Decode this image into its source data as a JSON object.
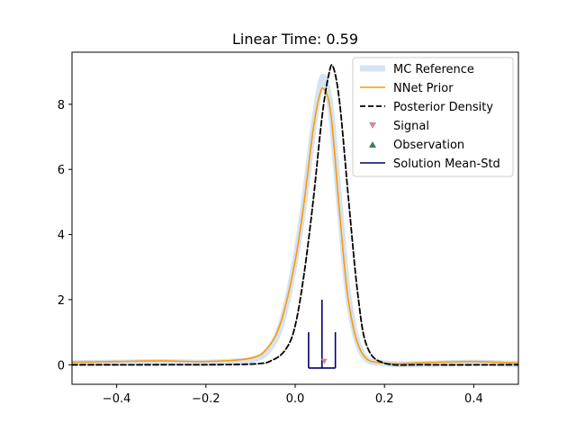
{
  "chart_data": {
    "type": "line",
    "title": "Linear Time: 0.59",
    "xlabel": "",
    "ylabel": "",
    "xlim": [
      -0.5,
      0.5
    ],
    "ylim": [
      -0.6,
      9.6
    ],
    "x_ticks": [
      -0.4,
      -0.2,
      0.0,
      0.2,
      0.4
    ],
    "x_tick_labels": [
      "−0.4",
      "−0.2",
      "0.0",
      "0.2",
      "0.4"
    ],
    "y_ticks": [
      0,
      2,
      4,
      6,
      8
    ],
    "y_tick_labels": [
      "0",
      "2",
      "4",
      "6",
      "8"
    ],
    "grid": false,
    "legend_position": "upper right",
    "legend": [
      {
        "label": "MC Reference",
        "marker": "thick-line",
        "color": "#c6dbef"
      },
      {
        "label": "NNet Prior",
        "marker": "line",
        "color": "#ff9900"
      },
      {
        "label": "Posterior Density",
        "marker": "dashed-line",
        "color": "#000000"
      },
      {
        "label": "Signal",
        "marker": "triangle-down",
        "color": "#d6849e"
      },
      {
        "label": "Observation",
        "marker": "triangle-up",
        "color": "#3d7f4d"
      },
      {
        "label": "Solution Mean-Std",
        "marker": "line",
        "color": "#000066"
      }
    ],
    "series": [
      {
        "name": "MC Reference",
        "style": "thick-line",
        "color": "#c6dbef",
        "x": [
          -0.5,
          -0.4,
          -0.3,
          -0.2,
          -0.1,
          -0.06,
          -0.03,
          0.0,
          0.02,
          0.04,
          0.055,
          0.065,
          0.08,
          0.1,
          0.12,
          0.15,
          0.2,
          0.3,
          0.4,
          0.5
        ],
        "y": [
          0.05,
          0.06,
          0.08,
          0.06,
          0.15,
          0.45,
          1.3,
          3.2,
          5.0,
          7.2,
          8.5,
          8.8,
          7.8,
          4.8,
          2.0,
          0.35,
          0.04,
          0.03,
          0.06,
          0.02
        ]
      },
      {
        "name": "NNet Prior",
        "style": "line",
        "color": "#ff9900",
        "x": [
          -0.5,
          -0.4,
          -0.3,
          -0.2,
          -0.1,
          -0.06,
          -0.03,
          0.0,
          0.02,
          0.04,
          0.055,
          0.065,
          0.08,
          0.1,
          0.12,
          0.15,
          0.2,
          0.3,
          0.4,
          0.5
        ],
        "y": [
          0.08,
          0.1,
          0.12,
          0.1,
          0.2,
          0.55,
          1.4,
          3.2,
          5.0,
          7.2,
          8.3,
          8.45,
          7.7,
          4.6,
          1.9,
          0.35,
          0.05,
          0.07,
          0.1,
          0.05
        ]
      },
      {
        "name": "Posterior Density",
        "style": "dashed-line",
        "color": "#000000",
        "x": [
          -0.5,
          -0.3,
          -0.1,
          -0.05,
          -0.02,
          0.0,
          0.02,
          0.04,
          0.06,
          0.075,
          0.085,
          0.1,
          0.12,
          0.14,
          0.16,
          0.2,
          0.3,
          0.5
        ],
        "y": [
          0.0,
          0.0,
          0.02,
          0.15,
          0.5,
          1.2,
          2.8,
          5.0,
          7.6,
          8.9,
          9.15,
          8.0,
          5.0,
          2.2,
          0.6,
          0.05,
          0.0,
          0.0
        ]
      }
    ],
    "markers": {
      "signal": {
        "name": "Signal",
        "shape": "triangle-down",
        "color": "#d6849e",
        "x": 0.065,
        "y": 0.1
      },
      "observation": {
        "name": "Observation",
        "shape": "triangle-up",
        "color": "#3d7f4d",
        "x": null,
        "y": null
      }
    },
    "solution_mean_std": {
      "name": "Solution Mean-Std",
      "color": "#000066",
      "mean": 0.06,
      "std": 0.03,
      "base_y": -0.1,
      "mean_bar_top": 2.0,
      "std_bar_top": 1.0
    }
  }
}
